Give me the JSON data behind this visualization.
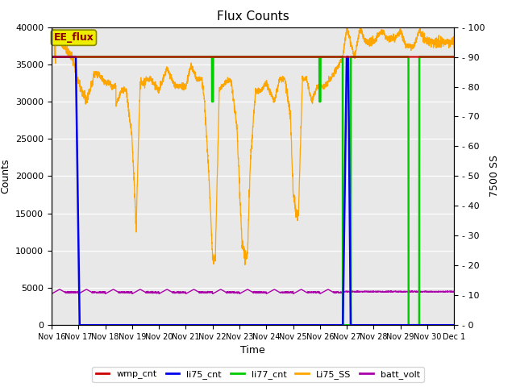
{
  "title": "Flux Counts",
  "xlabel": "Time",
  "ylabel_left": "Counts",
  "ylabel_right": "7500 SS",
  "ylim_left": [
    0,
    40000
  ],
  "ylim_right": [
    0,
    100
  ],
  "plot_bg": "#e8e8e8",
  "fig_bg": "#ffffff",
  "annotation_text": "EE_flux",
  "colors": {
    "wmp_cnt": "#cc0000",
    "li75_cnt": "#0000ee",
    "li77_cnt": "#00cc00",
    "Li75_SS": "#ffa500",
    "batt_volt": "#aa00aa"
  },
  "xtick_labels": [
    "Nov 16",
    "Nov 17",
    "Nov 18",
    "Nov 19",
    "Nov 20",
    "Nov 21",
    "Nov 22",
    "Nov 23",
    "Nov 24",
    "Nov 25",
    "Nov 26",
    "Nov 27",
    "Nov 28",
    "Nov 29",
    "Nov 30",
    "Dec 1"
  ],
  "ytick_left": [
    0,
    5000,
    10000,
    15000,
    20000,
    25000,
    30000,
    35000,
    40000
  ],
  "ytick_right": [
    0,
    10,
    20,
    30,
    40,
    50,
    60,
    70,
    80,
    90,
    100
  ],
  "grid_color": "#ffffff",
  "legend_labels": [
    "wmp_cnt",
    "li75_cnt",
    "li77_cnt",
    "Li75_SS",
    "batt_volt"
  ]
}
